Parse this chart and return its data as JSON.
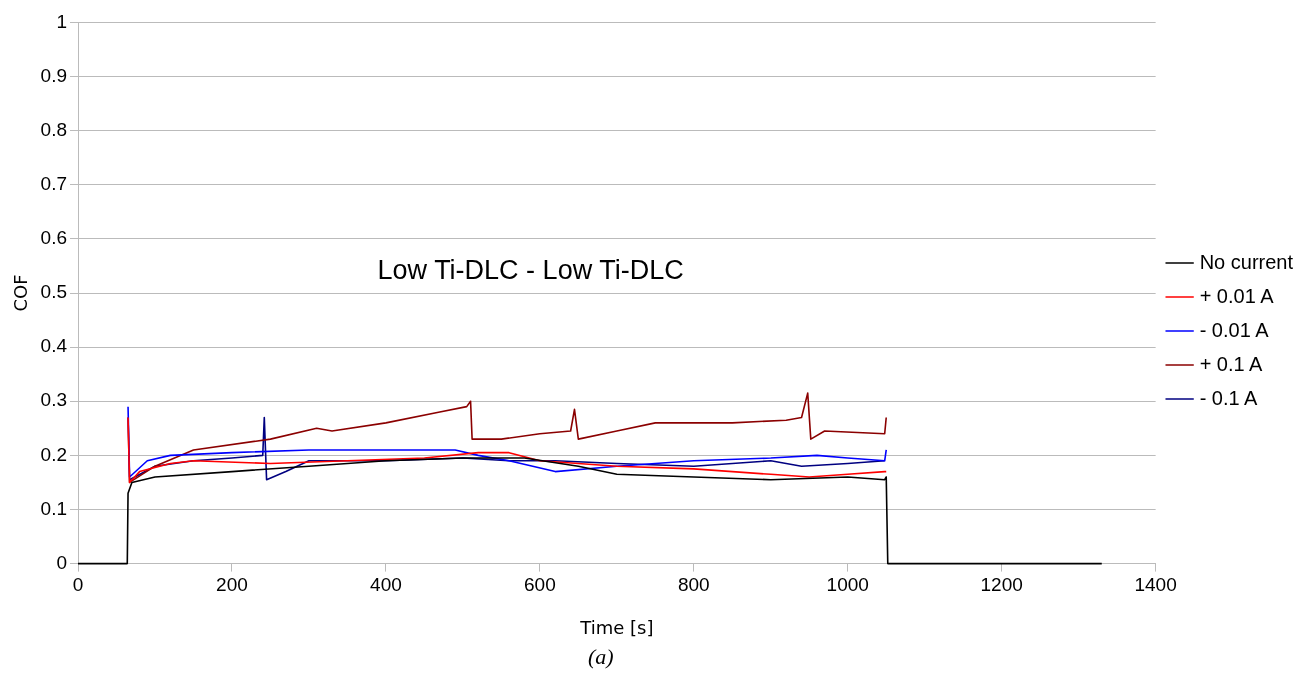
{
  "chart_data": {
    "type": "line",
    "xlabel": "Time [s]",
    "ylabel": "COF",
    "annotations": [
      "Low Ti-DLC - Low Ti-DLC",
      "(a)"
    ],
    "xlim": [
      0,
      1400
    ],
    "xticks": [
      0,
      200,
      400,
      600,
      800,
      1000,
      1200,
      1400
    ],
    "ylim": [
      0,
      1
    ],
    "yticks": [
      0,
      0.1,
      0.2,
      0.3,
      0.4,
      0.5,
      0.6,
      0.7,
      0.8,
      0.9,
      1
    ],
    "grid": "y",
    "legend": "right",
    "marker": "none",
    "line_style": "solid",
    "series": [
      {
        "name": "No current",
        "color": "#000000",
        "x": [
          0,
          64,
          65,
          70,
          100,
          200,
          300,
          400,
          500,
          580,
          650,
          700,
          800,
          900,
          1000,
          1048,
          1050,
          1052,
          1330
        ],
        "values": [
          0,
          0,
          0.13,
          0.15,
          0.16,
          0.17,
          0.18,
          0.19,
          0.195,
          0.195,
          0.18,
          0.165,
          0.16,
          0.155,
          0.16,
          0.155,
          0.16,
          0,
          0
        ]
      },
      {
        "name": "+ 0.01 A",
        "color": "#ff0000",
        "x": [
          65,
          67,
          80,
          120,
          150,
          250,
          350,
          450,
          520,
          560,
          600,
          700,
          800,
          900,
          950,
          1000,
          1048,
          1050
        ],
        "values": [
          0.27,
          0.15,
          0.17,
          0.185,
          0.19,
          0.185,
          0.19,
          0.195,
          0.205,
          0.205,
          0.19,
          0.18,
          0.175,
          0.165,
          0.16,
          0.165,
          0.17,
          0.17
        ]
      },
      {
        "name": "- 0.01 A",
        "color": "#0000ff",
        "x": [
          65,
          67,
          90,
          120,
          200,
          300,
          400,
          490,
          520,
          560,
          620,
          700,
          800,
          900,
          960,
          1000,
          1048,
          1050
        ],
        "values": [
          0.29,
          0.16,
          0.19,
          0.2,
          0.205,
          0.21,
          0.21,
          0.21,
          0.2,
          0.19,
          0.17,
          0.18,
          0.19,
          0.195,
          0.2,
          0.195,
          0.19,
          0.21
        ]
      },
      {
        "name": "+ 0.1 A",
        "color": "#8b0000",
        "x": [
          65,
          67,
          100,
          150,
          250,
          310,
          330,
          400,
          470,
          505,
          510,
          512,
          550,
          600,
          640,
          645,
          650,
          700,
          750,
          850,
          920,
          940,
          948,
          952,
          970,
          1048,
          1050
        ],
        "values": [
          0.27,
          0.15,
          0.18,
          0.21,
          0.23,
          0.25,
          0.245,
          0.26,
          0.28,
          0.29,
          0.3,
          0.23,
          0.23,
          0.24,
          0.245,
          0.285,
          0.23,
          0.245,
          0.26,
          0.26,
          0.265,
          0.27,
          0.315,
          0.23,
          0.245,
          0.24,
          0.27
        ]
      },
      {
        "name": "- 0.1 A",
        "color": "#000080",
        "x": [
          67,
          100,
          150,
          200,
          240,
          242,
          245,
          270,
          300,
          400,
          500,
          560,
          620,
          700,
          800,
          900,
          940,
          1000,
          1048
        ],
        "values": [
          0.155,
          0.18,
          0.19,
          0.195,
          0.2,
          0.27,
          0.155,
          0.17,
          0.19,
          0.19,
          0.195,
          0.19,
          0.19,
          0.185,
          0.18,
          0.19,
          0.18,
          0.185,
          0.19
        ]
      }
    ]
  }
}
